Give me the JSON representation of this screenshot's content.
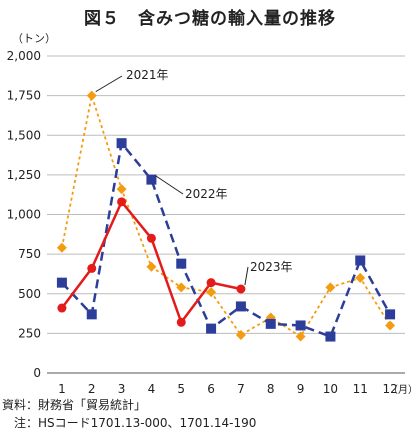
{
  "title": "図５　含みつ糖の輸入量の推移",
  "unit_label": "（トン）",
  "x_unit_label": "（月）",
  "source_note": "資料：財務省「貿易統計」",
  "code_note": "　注：HSコード1701.13-000、1701.14-190",
  "chart_data": {
    "type": "line",
    "x": [
      1,
      2,
      3,
      4,
      5,
      6,
      7,
      8,
      9,
      10,
      11,
      12
    ],
    "ylim": [
      0,
      2000
    ],
    "yticks": [
      "0",
      "250",
      "500",
      "750",
      "1,000",
      "1,250",
      "1,500",
      "1,750",
      "2,000"
    ],
    "grid": true,
    "series": [
      {
        "name": "2021年",
        "color": "#f39c12",
        "style": "dotted",
        "marker": "diamond",
        "values": [
          790,
          1750,
          1160,
          670,
          540,
          510,
          240,
          350,
          230,
          540,
          600,
          300
        ]
      },
      {
        "name": "2022年",
        "color": "#2c3e99",
        "style": "dashed",
        "marker": "square",
        "values": [
          570,
          370,
          1450,
          1220,
          690,
          280,
          420,
          310,
          300,
          230,
          710,
          370
        ]
      },
      {
        "name": "2023年",
        "color": "#e31b1b",
        "style": "solid",
        "marker": "circle",
        "values": [
          410,
          660,
          1080,
          850,
          320,
          570,
          530,
          null,
          null,
          null,
          null,
          null
        ]
      }
    ]
  }
}
